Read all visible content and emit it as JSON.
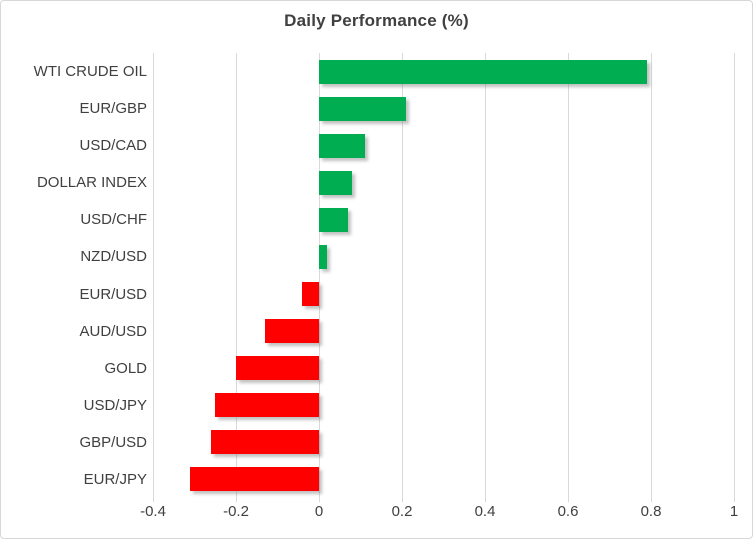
{
  "chart_data": {
    "type": "bar",
    "orientation": "horizontal",
    "title": "Daily Performance (%)",
    "categories": [
      "WTI CRUDE OIL",
      "EUR/GBP",
      "USD/CAD",
      "DOLLAR INDEX",
      "USD/CHF",
      "NZD/USD",
      "EUR/USD",
      "AUD/USD",
      "GOLD",
      "USD/JPY",
      "GBP/USD",
      "EUR/JPY"
    ],
    "values": [
      0.79,
      0.21,
      0.11,
      0.08,
      0.07,
      0.02,
      -0.04,
      -0.13,
      -0.2,
      -0.25,
      -0.26,
      -0.31
    ],
    "xlabel": "",
    "ylabel": "",
    "xlim": [
      -0.4,
      1.0
    ],
    "x_ticks": [
      -0.4,
      -0.2,
      0,
      0.2,
      0.4,
      0.6,
      0.8,
      1
    ],
    "x_tick_labels": [
      "-0.4",
      "-0.2",
      "0",
      "0.2",
      "0.4",
      "0.6",
      "0.8",
      "1"
    ],
    "grid": true,
    "legend": false,
    "colors": {
      "positive": "#00ad50",
      "negative": "#ff0000",
      "gridline": "#d9d9d9",
      "text": "#404040",
      "frame_border": "#d7d7d7"
    }
  }
}
